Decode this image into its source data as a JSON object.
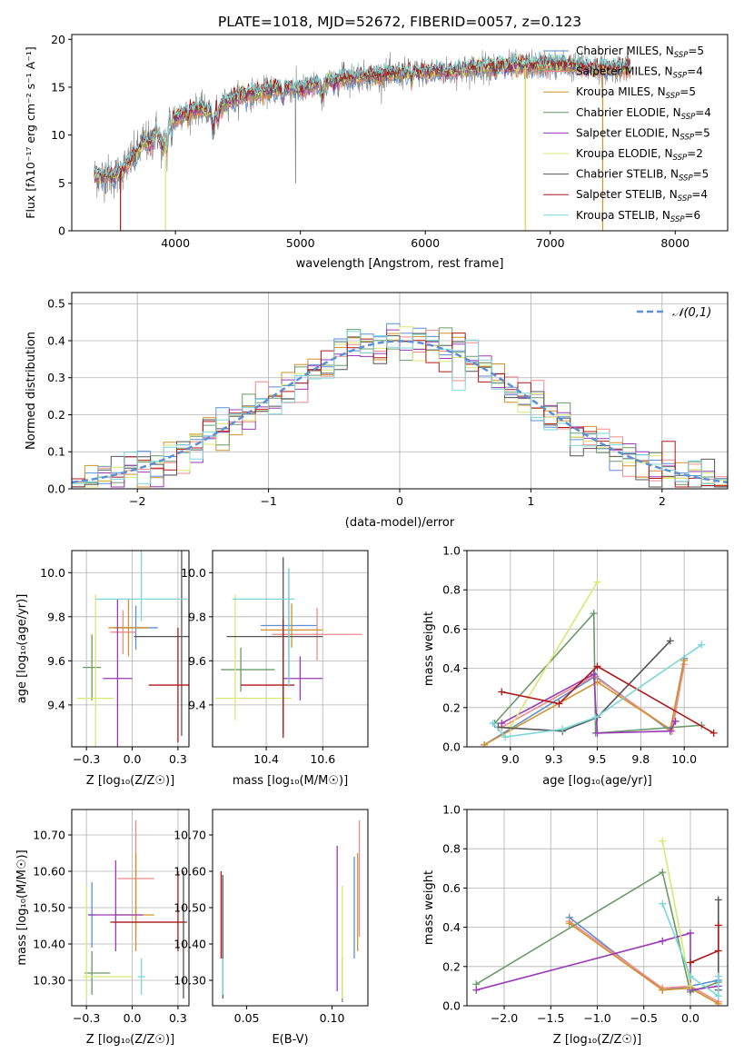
{
  "colors": {
    "s0": "#5b8fd6",
    "s1": "#f08a8a",
    "s2": "#d4902a",
    "s3": "#6a9a6a",
    "s4": "#9a3ab8",
    "s5": "#d8e870",
    "s6": "#555555",
    "s7": "#b01818",
    "s8": "#7ad6d8",
    "normal": "#5b8fd6"
  },
  "series_names": [
    "Chabrier MILES, N_SSP=5",
    "Salpeter MILES, N_SSP=4",
    "Kroupa MILES, N_SSP=5",
    "Chabrier ELODIE, N_SSP=4",
    "Salpeter ELODIE, N_SSP=5",
    "Kroupa ELODIE, N_SSP=2",
    "Chabrier STELIB, N_SSP=5",
    "Salpeter STELIB, N_SSP=4",
    "Kroupa STELIB, N_SSP=6"
  ],
  "chart_data": [
    {
      "id": "spectrum",
      "type": "line",
      "title": "PLATE=1018, MJD=52672, FIBERID=0057, z=0.123",
      "xlabel": "wavelength [Angstrom, rest frame]",
      "ylabel": "Flux [fλ10⁻¹⁷ erg cm⁻² s⁻¹ A⁻¹]",
      "xlim": [
        3170,
        8420
      ],
      "ylim": [
        0,
        20.5
      ],
      "xticks": [
        4000,
        5000,
        6000,
        7000,
        8000
      ],
      "yticks": [
        0,
        5,
        10,
        15,
        20
      ],
      "grid": false,
      "legend_position": "right",
      "observed_color": "#808080",
      "observed": {
        "x": [
          3350,
          3400,
          3450,
          3500,
          3550,
          3600,
          3650,
          3700,
          3750,
          3800,
          3850,
          3900,
          3950,
          4000,
          4100,
          4200,
          4300,
          4400,
          4500,
          4600,
          4700,
          4800,
          4900,
          5000,
          5200,
          5400,
          5600,
          5800,
          6000,
          6200,
          6400,
          6600,
          6800,
          7000,
          7200,
          7400,
          7600
        ],
        "y": [
          5.8,
          5.6,
          5.9,
          5.5,
          6.0,
          6.8,
          7.5,
          8.2,
          9.5,
          9.0,
          10.5,
          8.5,
          11.5,
          11.8,
          12.5,
          12.8,
          12.2,
          13.4,
          14.0,
          14.3,
          14.5,
          14.8,
          15.0,
          14.7,
          15.6,
          16.0,
          16.2,
          16.4,
          16.6,
          16.6,
          17.0,
          17.2,
          17.2,
          17.4,
          17.2,
          16.9,
          17.0
        ]
      },
      "legend": [
        "Chabrier MILES, N_SSP=5",
        "Salpeter MILES, N_SSP=4",
        "Kroupa MILES, N_SSP=5",
        "Chabrier ELODIE, N_SSP=4",
        "Salpeter ELODIE, N_SSP=5",
        "Kroupa ELODIE, N_SSP=2",
        "Chabrier STELIB, N_SSP=5",
        "Salpeter STELIB, N_SSP=4",
        "Kroupa STELIB, N_SSP=6"
      ]
    },
    {
      "id": "residuals",
      "type": "line",
      "xlabel": "(data-model)/error",
      "ylabel": "Normed distribution",
      "xlim": [
        -2.5,
        2.5
      ],
      "ylim": [
        0,
        0.53
      ],
      "xticks": [
        -2,
        -1,
        0,
        1,
        2
      ],
      "yticks": [
        0.0,
        0.1,
        0.2,
        0.3,
        0.4,
        0.5
      ],
      "grid": true,
      "legend_position": "top-right",
      "reference_curve": "𝒩(0,1)",
      "bin_width": 0.1
    },
    {
      "id": "age_vs_Z",
      "type": "scatter",
      "xlabel": "Z [log₁₀(Z/Z☉)]",
      "ylabel": "age  [log₁₀(age/yr)]",
      "xlim": [
        -0.33,
        0.31
      ],
      "ylim": [
        9.21,
        10.1
      ],
      "xticks": [
        -0.25,
        0.0,
        0.25
      ],
      "yticks": [
        9.4,
        9.6,
        9.8,
        10.0
      ],
      "grid": true,
      "points": [
        {
          "series": 0,
          "x": 0.02,
          "xerr": [
            0.12,
            0.12
          ],
          "y": 9.75,
          "yerr": [
            0.1,
            0.1
          ]
        },
        {
          "series": 1,
          "x": -0.05,
          "xerr": [
            0.07,
            0.07
          ],
          "y": 9.73,
          "yerr": [
            0.1,
            0.1
          ]
        },
        {
          "series": 2,
          "x": -0.02,
          "xerr": [
            0.11,
            0.11
          ],
          "y": 9.75,
          "yerr": [
            0.13,
            0.13
          ]
        },
        {
          "series": 3,
          "x": -0.22,
          "xerr": [
            0.05,
            0.05
          ],
          "y": 9.57,
          "yerr": [
            0.15,
            0.15
          ]
        },
        {
          "series": 4,
          "x": -0.08,
          "xerr": [
            0.08,
            0.08
          ],
          "y": 9.52,
          "yerr": [
            0.36,
            0.36
          ]
        },
        {
          "series": 5,
          "x": -0.2,
          "xerr": [
            0.1,
            0.1
          ],
          "y": 9.43,
          "yerr": [
            0.47,
            0.47
          ]
        },
        {
          "series": 6,
          "x": 0.27,
          "xerr": [
            0.26,
            0.26
          ],
          "y": 9.71,
          "yerr": [
            0.45,
            0.45
          ]
        },
        {
          "series": 7,
          "x": 0.25,
          "xerr": [
            0.16,
            0.16
          ],
          "y": 9.49,
          "yerr": [
            0.26,
            0.26
          ]
        },
        {
          "series": 8,
          "x": 0.05,
          "xerr": [
            0.25,
            0.25
          ],
          "y": 9.88,
          "yerr": [
            0.1,
            0.4
          ]
        }
      ]
    },
    {
      "id": "age_vs_mass",
      "type": "scatter",
      "xlabel": "mass [log₁₀(M/M☉)]",
      "ylabel": "",
      "xlim": [
        10.21,
        10.76
      ],
      "ylim": [
        9.21,
        10.1
      ],
      "xticks": [
        10.4,
        10.6
      ],
      "yticks": [
        9.4,
        9.6,
        9.8,
        10.0
      ],
      "grid": true,
      "points": [
        {
          "series": 0,
          "x": 10.48,
          "xerr": [
            0.1,
            0.1
          ],
          "y": 9.76,
          "yerr": [
            0.26,
            0.26
          ]
        },
        {
          "series": 1,
          "x": 10.58,
          "xerr": [
            0.16,
            0.16
          ],
          "y": 9.72,
          "yerr": [
            0.12,
            0.12
          ]
        },
        {
          "series": 2,
          "x": 10.49,
          "xerr": [
            0.11,
            0.11
          ],
          "y": 9.74,
          "yerr": [
            0.08,
            0.12
          ]
        },
        {
          "series": 3,
          "x": 10.31,
          "xerr": [
            0.07,
            0.12
          ],
          "y": 9.56,
          "yerr": [
            0.1,
            0.1
          ]
        },
        {
          "series": 4,
          "x": 10.52,
          "xerr": [
            0.06,
            0.08
          ],
          "y": 9.52,
          "yerr": [
            0.1,
            0.1
          ]
        },
        {
          "series": 5,
          "x": 10.29,
          "xerr": [
            0.07,
            0.2
          ],
          "y": 9.43,
          "yerr": [
            0.1,
            0.47
          ]
        },
        {
          "series": 6,
          "x": 10.46,
          "xerr": [
            0.2,
            0.14
          ],
          "y": 9.71,
          "yerr": [
            0.44,
            0.36
          ]
        },
        {
          "series": 7,
          "x": 10.46,
          "xerr": [
            0.15,
            0.04
          ],
          "y": 9.49,
          "yerr": [
            0.24,
            0.3
          ]
        },
        {
          "series": 8,
          "x": 10.48,
          "xerr": [
            0.2,
            0.02
          ],
          "y": 9.88,
          "yerr": [
            0.4,
            0.14
          ]
        }
      ]
    },
    {
      "id": "massweight_vs_age",
      "type": "line",
      "xlabel": "age  [log₁₀(age/yr)]",
      "ylabel": "mass weight",
      "xlim": [
        8.75,
        10.25
      ],
      "ylim": [
        0,
        1.0
      ],
      "xticks": [
        9.0,
        9.25,
        9.5,
        9.75,
        10.0
      ],
      "yticks": [
        0.0,
        0.2,
        0.4,
        0.6,
        0.8,
        1.0
      ],
      "grid": true,
      "series": [
        {
          "index": 0,
          "points": [
            [
              8.85,
              0.01
            ],
            [
              9.49,
              0.36
            ],
            [
              9.92,
              0.08
            ],
            [
              10.0,
              0.45
            ]
          ]
        },
        {
          "index": 1,
          "points": [
            [
              8.95,
              0.1
            ],
            [
              9.48,
              0.36
            ],
            [
              9.93,
              0.08
            ],
            [
              10.0,
              0.42
            ]
          ]
        },
        {
          "index": 2,
          "points": [
            [
              8.85,
              0.01
            ],
            [
              9.5,
              0.33
            ],
            [
              9.92,
              0.09
            ],
            [
              10.0,
              0.44
            ]
          ]
        },
        {
          "index": 3,
          "points": [
            [
              8.91,
              0.12
            ],
            [
              9.48,
              0.68
            ],
            [
              9.49,
              0.07
            ],
            [
              10.1,
              0.11
            ]
          ]
        },
        {
          "index": 4,
          "points": [
            [
              8.95,
              0.12
            ],
            [
              9.48,
              0.37
            ],
            [
              9.5,
              0.07
            ],
            [
              9.92,
              0.08
            ],
            [
              9.95,
              0.13
            ]
          ]
        },
        {
          "index": 5,
          "points": [
            [
              9.0,
              0.1
            ],
            [
              9.5,
              0.84
            ]
          ]
        },
        {
          "index": 6,
          "points": [
            [
              8.93,
              0.1
            ],
            [
              9.3,
              0.08
            ],
            [
              9.5,
              0.15
            ],
            [
              9.92,
              0.54
            ]
          ]
        },
        {
          "index": 7,
          "points": [
            [
              8.95,
              0.28
            ],
            [
              9.28,
              0.22
            ],
            [
              9.5,
              0.41
            ],
            [
              10.17,
              0.07
            ]
          ]
        },
        {
          "index": 8,
          "points": [
            [
              8.9,
              0.12
            ],
            [
              8.97,
              0.05
            ],
            [
              9.3,
              0.09
            ],
            [
              9.49,
              0.15
            ],
            [
              10.1,
              0.52
            ]
          ]
        }
      ]
    },
    {
      "id": "mass_vs_Z",
      "type": "scatter",
      "xlabel": "Z [log₁₀(Z/Z☉)]",
      "ylabel": "mass [log₁₀(M/M☉)]",
      "xlim": [
        -0.33,
        0.31
      ],
      "ylim": [
        10.23,
        10.77
      ],
      "xticks": [
        -0.25,
        0.0,
        0.25
      ],
      "yticks": [
        10.3,
        10.4,
        10.5,
        10.6,
        10.7
      ],
      "grid": true,
      "points": [
        {
          "series": 0,
          "x": -0.22,
          "xerr": [
            0.02,
            0.02
          ],
          "y": 10.48,
          "yerr": [
            0.09,
            0.09
          ]
        },
        {
          "series": 1,
          "x": 0.02,
          "xerr": [
            0.1,
            0.1
          ],
          "y": 10.58,
          "yerr": [
            0.16,
            0.16
          ]
        },
        {
          "series": 2,
          "x": 0.02,
          "xerr": [
            0.12,
            0.1
          ],
          "y": 10.48,
          "yerr": [
            0.1,
            0.17
          ]
        },
        {
          "series": 3,
          "x": -0.22,
          "xerr": [
            0.04,
            0.1
          ],
          "y": 10.32,
          "yerr": [
            0.06,
            0.06
          ]
        },
        {
          "series": 4,
          "x": -0.09,
          "xerr": [
            0.15,
            0.15
          ],
          "y": 10.48,
          "yerr": [
            0.1,
            0.15
          ]
        },
        {
          "series": 5,
          "x": -0.25,
          "xerr": [
            0.02,
            0.25
          ],
          "y": 10.31,
          "yerr": [
            0.06,
            0.25
          ]
        },
        {
          "series": 6,
          "x": 0.28,
          "xerr": [
            0.38,
            0.02
          ],
          "y": 10.46,
          "yerr": [
            0.21,
            0.14
          ]
        },
        {
          "series": 7,
          "x": 0.25,
          "xerr": [
            0.37,
            0.04
          ],
          "y": 10.46,
          "yerr": [
            0.08,
            0.14
          ]
        },
        {
          "series": 8,
          "x": 0.05,
          "xerr": [
            0.02,
            0.02
          ],
          "y": 10.31,
          "yerr": [
            0.05,
            0.05
          ]
        }
      ]
    },
    {
      "id": "mass_vs_ebv",
      "type": "scatter",
      "xlabel": "E(B-V)",
      "ylabel": "",
      "xlim": [
        0.03,
        0.121
      ],
      "ylim": [
        10.23,
        10.77
      ],
      "xticks": [
        0.05,
        0.1
      ],
      "yticks": [
        10.3,
        10.4,
        10.5,
        10.6,
        10.7
      ],
      "grid": false,
      "points": [
        {
          "series": 0,
          "x": 0.113,
          "yerr": [
            0.14,
            0.14
          ],
          "y": 10.5
        },
        {
          "series": 1,
          "x": 0.116,
          "yerr": [
            0.16,
            0.16
          ],
          "y": 10.58
        },
        {
          "series": 2,
          "x": 0.115,
          "yerr": [
            0.1,
            0.17
          ],
          "y": 10.48
        },
        {
          "series": 3,
          "x": 0.106,
          "yerr": [
            0.06,
            0.06
          ],
          "y": 10.3
        },
        {
          "series": 4,
          "x": 0.103,
          "yerr": [
            0.2,
            0.2
          ],
          "y": 10.47
        },
        {
          "series": 5,
          "x": 0.106,
          "yerr": [
            0.06,
            0.25
          ],
          "y": 10.31
        },
        {
          "series": 6,
          "x": 0.036,
          "yerr": [
            0.2,
            0.14
          ],
          "y": 10.45
        },
        {
          "series": 7,
          "x": 0.035,
          "yerr": [
            0.1,
            0.14
          ],
          "y": 10.46
        },
        {
          "series": 8,
          "x": 0.036,
          "yerr": [
            0.05,
            0.05
          ],
          "y": 10.31
        }
      ]
    },
    {
      "id": "massweight_vs_Z",
      "type": "line",
      "xlabel": "Z [log₁₀(Z/Z☉)]",
      "ylabel": "mass weight",
      "xlim": [
        -2.4,
        0.4
      ],
      "ylim": [
        0,
        1.0
      ],
      "xticks": [
        -2.0,
        -1.5,
        -1.0,
        -0.5,
        0.0
      ],
      "yticks": [
        0.0,
        0.2,
        0.4,
        0.6,
        0.8,
        1.0
      ],
      "grid": true,
      "series": [
        {
          "index": 0,
          "points": [
            [
              -1.3,
              0.45
            ],
            [
              -0.3,
              0.08
            ],
            [
              0.0,
              0.1
            ],
            [
              0.3,
              0.13
            ]
          ]
        },
        {
          "index": 1,
          "points": [
            [
              -1.3,
              0.43
            ],
            [
              -0.3,
              0.09
            ],
            [
              0.0,
              0.1
            ],
            [
              0.3,
              0.02
            ]
          ]
        },
        {
          "index": 2,
          "points": [
            [
              -1.3,
              0.42
            ],
            [
              -0.3,
              0.08
            ],
            [
              0.0,
              0.09
            ],
            [
              0.3,
              0.01
            ]
          ]
        },
        {
          "index": 3,
          "points": [
            [
              -2.3,
              0.11
            ],
            [
              -0.3,
              0.68
            ],
            [
              0.0,
              0.07
            ],
            [
              0.3,
              0.12
            ]
          ]
        },
        {
          "index": 4,
          "points": [
            [
              -2.3,
              0.08
            ],
            [
              -0.3,
              0.33
            ],
            [
              0.0,
              0.37
            ],
            [
              0.0,
              0.08
            ],
            [
              0.3,
              0.1
            ]
          ]
        },
        {
          "index": 5,
          "points": [
            [
              -0.3,
              0.84
            ],
            [
              0.0,
              0.1
            ]
          ]
        },
        {
          "index": 6,
          "points": [
            [
              0.3,
              0.54
            ],
            [
              0.3,
              0.08
            ]
          ]
        },
        {
          "index": 7,
          "points": [
            [
              0.0,
              0.22
            ],
            [
              0.3,
              0.28
            ],
            [
              0.3,
              0.41
            ]
          ]
        },
        {
          "index": 8,
          "points": [
            [
              -0.3,
              0.52
            ],
            [
              0.0,
              0.15
            ],
            [
              0.3,
              0.05
            ],
            [
              0.3,
              0.15
            ]
          ]
        }
      ]
    }
  ]
}
